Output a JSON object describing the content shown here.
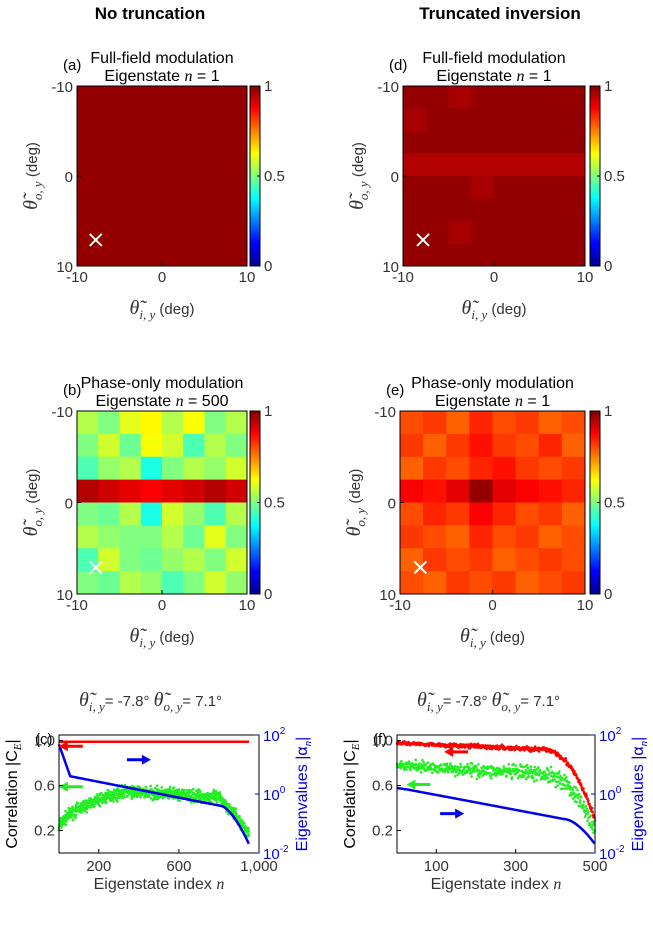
{
  "column_titles": [
    "No truncation",
    "Truncated inversion"
  ],
  "axis_label_deg": "(deg)",
  "theta_i_label": "θ̃",
  "theta_i_sub": "i, y",
  "theta_o_label": "θ̃",
  "theta_o_sub": "o, y",
  "colorbar_ticks": [
    "0",
    "0.5",
    "1"
  ],
  "x_ticks": [
    "-10",
    "0",
    "10"
  ],
  "y_ticks": [
    "-10",
    "0",
    "10"
  ],
  "colors": {
    "red_series": "#ff0000",
    "green_series": "#22ee22",
    "blue_series": "#0000ee",
    "marker": "#ffffff"
  },
  "chart_data": [
    {
      "id": "a",
      "type": "heatmap",
      "panel_letter": "(a)",
      "title_line1": "Full-field modulation",
      "title_line2_prefix": "Eigenstate ",
      "title_var": "n",
      "title_value": " = 1",
      "xlim": [
        -10,
        10
      ],
      "ylim": [
        -10,
        10
      ],
      "clim": [
        0,
        1
      ],
      "marker": [
        -7.8,
        7.1
      ],
      "matrix": [
        [
          0.98,
          0.98,
          0.98,
          0.98,
          0.98,
          0.98,
          0.98,
          0.98
        ],
        [
          0.98,
          0.98,
          0.98,
          0.98,
          0.98,
          0.98,
          0.98,
          0.98
        ],
        [
          0.98,
          0.98,
          0.98,
          0.98,
          0.98,
          0.98,
          0.98,
          0.98
        ],
        [
          0.98,
          0.98,
          0.98,
          0.98,
          0.98,
          0.98,
          0.98,
          0.98
        ],
        [
          0.98,
          0.98,
          0.98,
          0.98,
          0.98,
          0.98,
          0.98,
          0.98
        ],
        [
          0.98,
          0.98,
          0.98,
          0.98,
          0.98,
          0.98,
          0.98,
          0.98
        ],
        [
          0.98,
          0.98,
          0.98,
          0.98,
          0.98,
          0.98,
          0.98,
          0.98
        ],
        [
          0.98,
          0.98,
          0.98,
          0.98,
          0.98,
          0.98,
          0.98,
          0.98
        ]
      ]
    },
    {
      "id": "d",
      "type": "heatmap",
      "panel_letter": "(d)",
      "title_line1": "Full-field modulation",
      "title_line2_prefix": "Eigenstate ",
      "title_var": "n",
      "title_value": " = 1",
      "xlim": [
        -10,
        10
      ],
      "ylim": [
        -10,
        10
      ],
      "clim": [
        0,
        1
      ],
      "marker": [
        -7.8,
        7.1
      ],
      "matrix": [
        [
          0.98,
          0.98,
          0.96,
          0.98,
          0.98,
          0.98,
          0.98,
          0.98
        ],
        [
          0.96,
          0.98,
          0.98,
          0.98,
          0.98,
          0.98,
          0.98,
          0.98
        ],
        [
          0.98,
          0.98,
          0.98,
          0.98,
          0.98,
          0.98,
          0.98,
          0.98
        ],
        [
          0.95,
          0.95,
          0.95,
          0.95,
          0.95,
          0.95,
          0.95,
          0.95
        ],
        [
          0.98,
          0.98,
          0.98,
          0.96,
          0.98,
          0.98,
          0.98,
          0.98
        ],
        [
          0.98,
          0.98,
          0.98,
          0.98,
          0.98,
          0.98,
          0.98,
          0.98
        ],
        [
          0.98,
          0.98,
          0.96,
          0.98,
          0.98,
          0.98,
          0.98,
          0.98
        ],
        [
          0.98,
          0.98,
          0.98,
          0.98,
          0.98,
          0.98,
          0.98,
          0.98
        ]
      ]
    },
    {
      "id": "b",
      "type": "heatmap",
      "panel_letter": "(b)",
      "title_line1": "Phase-only modulation",
      "title_line2_prefix": "Eigenstate ",
      "title_var": "n",
      "title_value": " = 500",
      "xlim": [
        -10,
        10
      ],
      "ylim": [
        -10,
        10
      ],
      "clim": [
        0,
        1
      ],
      "marker": [
        -7.8,
        7.1
      ],
      "matrix": [
        [
          0.55,
          0.5,
          0.6,
          0.63,
          0.55,
          0.62,
          0.5,
          0.55
        ],
        [
          0.5,
          0.58,
          0.48,
          0.62,
          0.58,
          0.45,
          0.55,
          0.5
        ],
        [
          0.45,
          0.52,
          0.55,
          0.4,
          0.5,
          0.55,
          0.52,
          0.58
        ],
        [
          0.95,
          0.92,
          0.9,
          0.88,
          0.9,
          0.92,
          0.95,
          0.92
        ],
        [
          0.5,
          0.48,
          0.55,
          0.4,
          0.58,
          0.52,
          0.45,
          0.55
        ],
        [
          0.55,
          0.52,
          0.5,
          0.5,
          0.55,
          0.48,
          0.6,
          0.5
        ],
        [
          0.45,
          0.58,
          0.5,
          0.48,
          0.52,
          0.55,
          0.5,
          0.58
        ],
        [
          0.5,
          0.48,
          0.55,
          0.52,
          0.45,
          0.5,
          0.58,
          0.52
        ]
      ]
    },
    {
      "id": "e",
      "type": "heatmap",
      "panel_letter": "(e)",
      "title_line1": "Phase-only modulation",
      "title_line2_prefix": "Eigenstate ",
      "title_var": "n",
      "title_value": " = 1",
      "xlim": [
        -10,
        10
      ],
      "ylim": [
        -10,
        10
      ],
      "clim": [
        0,
        1
      ],
      "marker": [
        -7.8,
        7.1
      ],
      "matrix": [
        [
          0.8,
          0.82,
          0.78,
          0.84,
          0.8,
          0.82,
          0.78,
          0.8
        ],
        [
          0.82,
          0.78,
          0.82,
          0.86,
          0.82,
          0.8,
          0.84,
          0.78
        ],
        [
          0.78,
          0.82,
          0.8,
          0.84,
          0.86,
          0.82,
          0.8,
          0.82
        ],
        [
          0.88,
          0.86,
          0.9,
          0.98,
          0.9,
          0.88,
          0.86,
          0.84
        ],
        [
          0.8,
          0.84,
          0.82,
          0.88,
          0.84,
          0.8,
          0.82,
          0.78
        ],
        [
          0.82,
          0.8,
          0.78,
          0.84,
          0.8,
          0.82,
          0.78,
          0.8
        ],
        [
          0.78,
          0.82,
          0.8,
          0.82,
          0.78,
          0.8,
          0.82,
          0.8
        ],
        [
          0.8,
          0.78,
          0.82,
          0.8,
          0.82,
          0.78,
          0.8,
          0.82
        ]
      ]
    },
    {
      "id": "c",
      "type": "scatter",
      "panel_letter": "(c)",
      "header_i_value": "= -7.8°",
      "header_o_value": "= 7.1°",
      "xlabel_prefix": "Eigenstate index ",
      "xlabel_var": "n",
      "ylabel": "Correlation |C",
      "ylabel_sub": "E",
      "ylabel_end": "|",
      "y2label": "Eigenvalues |α",
      "y2label_sub": "n",
      "y2label_end": "|",
      "xlim": [
        1,
        1000
      ],
      "ylim": [
        0,
        1.05
      ],
      "x_ticks": [
        "200",
        "600",
        "1,000"
      ],
      "x_tick_values": [
        200,
        600,
        1000
      ],
      "y_ticks": [
        "0.2",
        "0.6",
        "1.0"
      ],
      "y_tick_values": [
        0.2,
        0.6,
        1.0
      ],
      "y2_scale": "log",
      "y2lim": [
        0.01,
        100
      ],
      "y2_ticks": [
        {
          "base": "10",
          "exp": "-2",
          "value": 0.01
        },
        {
          "base": "10",
          "exp": "0",
          "value": 1
        },
        {
          "base": "10",
          "exp": "2",
          "value": 100
        }
      ],
      "n_max": 950,
      "series": [
        {
          "color": "red",
          "axis": "left",
          "kind": "flat",
          "value": 0.99
        },
        {
          "color": "green",
          "axis": "left",
          "kind": "scatter_hump",
          "start": 0.2,
          "peak": 0.55,
          "end": 0.18,
          "spread": 0.08
        },
        {
          "color": "blue",
          "axis": "right",
          "kind": "decay",
          "start": 50,
          "mid": 1.0,
          "end": 0.02
        }
      ],
      "arrows": [
        {
          "color": "red",
          "direction": "left",
          "x": 60,
          "y": 0.95
        },
        {
          "color": "green",
          "direction": "left",
          "x": 60,
          "y": 0.59
        },
        {
          "color": "blue",
          "direction": "right",
          "x": 400,
          "y": 0.83
        }
      ]
    },
    {
      "id": "f",
      "type": "scatter",
      "panel_letter": "(f)",
      "header_i_value": "= -7.8°",
      "header_o_value": "= 7.1°",
      "xlabel_prefix": "Eigenstate index ",
      "xlabel_var": "n",
      "ylabel": "Correlation |C",
      "ylabel_sub": "E",
      "ylabel_end": "|",
      "y2label": "Eigenvalues |α",
      "y2label_sub": "n",
      "y2label_end": "|",
      "xlim": [
        1,
        500
      ],
      "ylim": [
        0,
        1.05
      ],
      "x_ticks": [
        "100",
        "300",
        "500"
      ],
      "x_tick_values": [
        100,
        300,
        500
      ],
      "y_ticks": [
        "0.2",
        "0.6",
        "1.0"
      ],
      "y_tick_values": [
        0.2,
        0.6,
        1.0
      ],
      "y2_scale": "log",
      "y2lim": [
        0.01,
        100
      ],
      "y2_ticks": [
        {
          "base": "10",
          "exp": "-2",
          "value": 0.01
        },
        {
          "base": "10",
          "exp": "0",
          "value": 1
        },
        {
          "base": "10",
          "exp": "2",
          "value": 100
        }
      ],
      "n_max": 500,
      "series": [
        {
          "color": "red",
          "axis": "left",
          "kind": "decline",
          "start": 0.98,
          "mid": 0.92,
          "end": 0.3,
          "spread": 0.02
        },
        {
          "color": "green",
          "axis": "left",
          "kind": "decline",
          "start": 0.78,
          "mid": 0.7,
          "end": 0.2,
          "spread": 0.06
        },
        {
          "color": "blue",
          "axis": "right",
          "kind": "decay",
          "start": 1.6,
          "mid": 0.35,
          "end": 0.02
        }
      ],
      "arrows": [
        {
          "color": "red",
          "direction": "left",
          "x": 150,
          "y": 0.9
        },
        {
          "color": "green",
          "direction": "left",
          "x": 55,
          "y": 0.61
        },
        {
          "color": "blue",
          "direction": "right",
          "x": 140,
          "y": 0.35
        }
      ]
    }
  ]
}
